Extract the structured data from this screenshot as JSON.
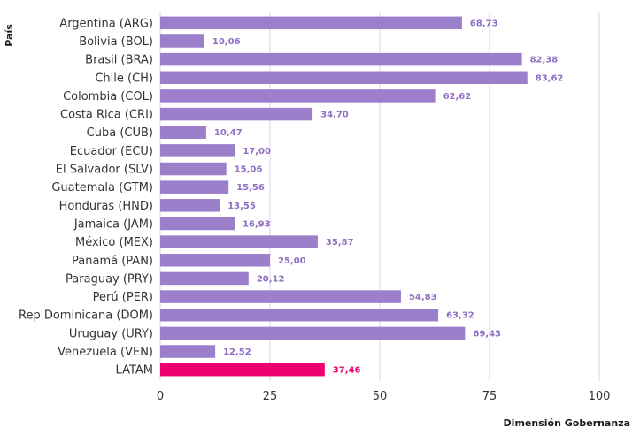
{
  "chart_data": {
    "type": "bar",
    "orientation": "horizontal",
    "ylabel": "País",
    "xlabel": "Dimensión Gobernanza",
    "xlim": [
      0,
      100
    ],
    "xticks": [
      0,
      25,
      50,
      75,
      100
    ],
    "grid": true,
    "categories": [
      "Argentina (ARG)",
      "Bolivia (BOL)",
      "Brasil (BRA)",
      "Chile (CH)",
      "Colombia (COL)",
      "Costa Rica (CRI)",
      "Cuba (CUB)",
      "Ecuador (ECU)",
      "El Salvador (SLV)",
      "Guatemala (GTM)",
      "Honduras (HND)",
      "Jamaica (JAM)",
      "México (MEX)",
      "Panamá (PAN)",
      "Paraguay (PRY)",
      "Perú (PER)",
      "Rep Dominicana (DOM)",
      "Uruguay (URY)",
      "Venezuela (VEN)",
      "LATAM"
    ],
    "values": [
      68.73,
      10.06,
      82.38,
      83.62,
      62.62,
      34.7,
      10.47,
      17.0,
      15.06,
      15.56,
      13.55,
      16.93,
      35.87,
      25.0,
      20.12,
      54.83,
      63.32,
      69.43,
      12.52,
      37.46
    ],
    "value_labels": [
      "68,73",
      "10,06",
      "82,38",
      "83,62",
      "62,62",
      "34,70",
      "10,47",
      "17,00",
      "15,06",
      "15,56",
      "13,55",
      "16,93",
      "35,87",
      "25,00",
      "20,12",
      "54,83",
      "63,32",
      "69,43",
      "12,52",
      "37,46"
    ],
    "highlight_category": "LATAM",
    "colors": {
      "bar": "#9b7fcb",
      "highlight": "#f0006e",
      "label": "#8e6fc4",
      "grid": "#d8d2ee"
    }
  }
}
